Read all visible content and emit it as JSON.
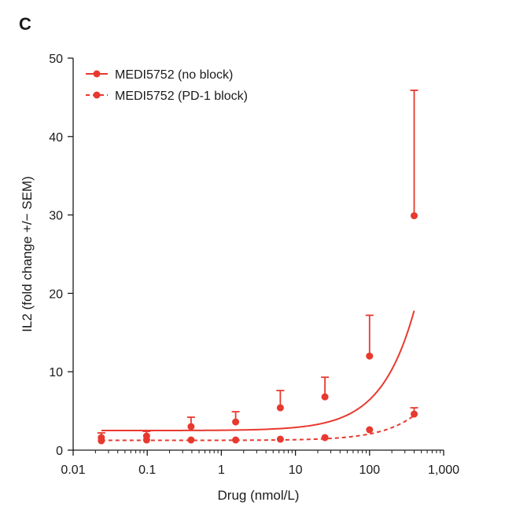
{
  "panel_label": "C",
  "chart_data": {
    "type": "line",
    "title": "",
    "xlabel": "Drug (nmol/L)",
    "ylabel": "IL2 (fold change +/− SEM)",
    "xscale": "log",
    "xlim": [
      0.01,
      1000
    ],
    "ylim": [
      0,
      50
    ],
    "x_ticks": [
      0.01,
      0.1,
      1,
      10,
      100,
      1000
    ],
    "x_tick_labels": [
      "0.01",
      "0.1",
      "1",
      "10",
      "100",
      "1,000"
    ],
    "y_ticks": [
      0,
      10,
      20,
      30,
      40,
      50
    ],
    "y_tick_labels": [
      "0",
      "10",
      "20",
      "30",
      "40",
      "50"
    ],
    "grid": false,
    "legend_position": "top-left",
    "color": "#e8392f",
    "series": [
      {
        "name": "MEDI5752 (no block)",
        "style": "solid",
        "points": [
          {
            "x": 0.024,
            "y": 1.6,
            "err": 0.6
          },
          {
            "x": 0.098,
            "y": 1.8,
            "err": 0.6
          },
          {
            "x": 0.39,
            "y": 3.0,
            "err": 1.2
          },
          {
            "x": 1.56,
            "y": 3.6,
            "err": 1.3
          },
          {
            "x": 6.25,
            "y": 5.4,
            "err": 2.2
          },
          {
            "x": 25,
            "y": 6.8,
            "err": 2.5
          },
          {
            "x": 100,
            "y": 12.0,
            "err": 5.2
          },
          {
            "x": 400,
            "y": 29.9,
            "err": 16.0
          }
        ],
        "fit": {
          "bottom": 2.5,
          "top": 400,
          "ec50": 10000,
          "hill": 1
        }
      },
      {
        "name": "MEDI5752 (PD-1 block)",
        "style": "dashed",
        "points": [
          {
            "x": 0.024,
            "y": 1.2,
            "err": 0
          },
          {
            "x": 0.098,
            "y": 1.3,
            "err": 0
          },
          {
            "x": 0.39,
            "y": 1.3,
            "err": 0
          },
          {
            "x": 1.56,
            "y": 1.3,
            "err": 0
          },
          {
            "x": 6.25,
            "y": 1.4,
            "err": 0
          },
          {
            "x": 25,
            "y": 1.6,
            "err": 0
          },
          {
            "x": 100,
            "y": 2.6,
            "err": 0
          },
          {
            "x": 400,
            "y": 4.6,
            "err": 0.8
          }
        ],
        "fit": {
          "bottom": 1.25,
          "top": 100,
          "ec50": 12000,
          "hill": 1
        }
      }
    ]
  }
}
